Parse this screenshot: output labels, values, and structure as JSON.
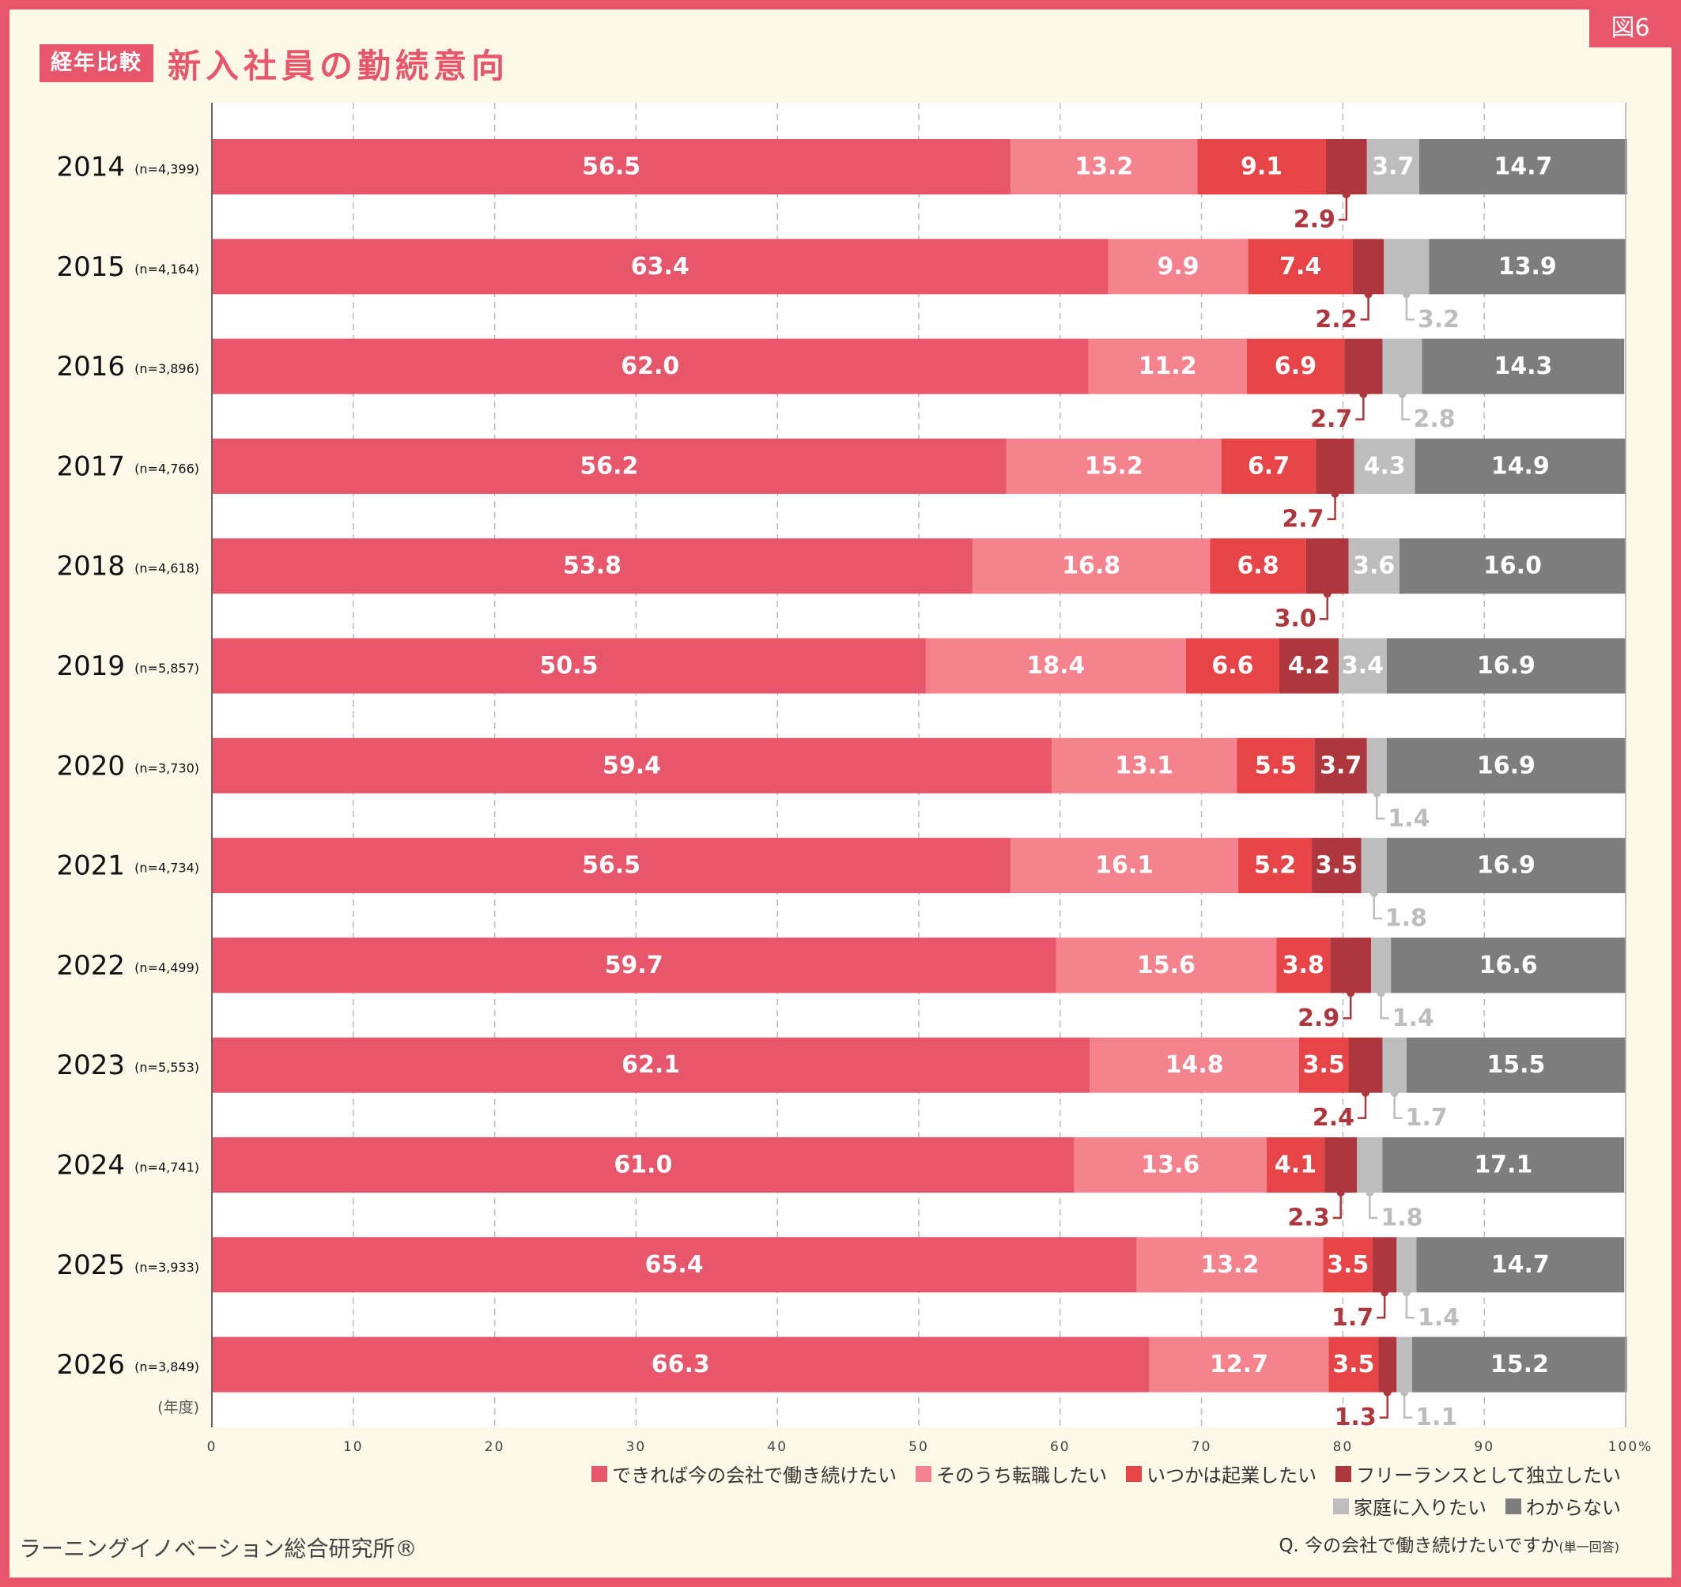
{
  "figure_number": "図6",
  "header": {
    "badge": "経年比較",
    "title": "新入社員の勤続意向"
  },
  "footer": {
    "source": "ラーニングイノベーション総合研究所®",
    "question": "Q. 今の会社で働き続けたいですか",
    "question_note": "(単一回答)"
  },
  "chart_data": {
    "type": "bar",
    "orientation": "horizontal",
    "stacked": true,
    "title": "新入社員の勤続意向",
    "categories": [
      "2014",
      "2015",
      "2016",
      "2017",
      "2018",
      "2019",
      "2020",
      "2021",
      "2022",
      "2023",
      "2024",
      "2025",
      "2026"
    ],
    "sample_sizes": [
      "(n=4,399)",
      "(n=4,164)",
      "(n=3,896)",
      "(n=4,766)",
      "(n=4,618)",
      "(n=5,857)",
      "(n=3,730)",
      "(n=4,734)",
      "(n=4,499)",
      "(n=5,553)",
      "(n=4,741)",
      "(n=3,933)",
      "(n=3,849)"
    ],
    "y_unit_label": "(年度)",
    "x_ticks": [
      "0",
      "10",
      "20",
      "30",
      "40",
      "50",
      "60",
      "70",
      "80",
      "90",
      "100%"
    ],
    "xlim": [
      0,
      100
    ],
    "grid": true,
    "legend_position": "bottom-right",
    "series": [
      {
        "name": "できれば今の会社で働き続けたい",
        "color": "#e8566b",
        "values": [
          56.5,
          63.4,
          62.0,
          56.2,
          53.8,
          50.5,
          59.4,
          56.5,
          59.7,
          62.1,
          61.0,
          65.4,
          66.3
        ]
      },
      {
        "name": "そのうち転職したい",
        "color": "#f4838d",
        "values": [
          13.2,
          9.9,
          11.2,
          15.2,
          16.8,
          18.4,
          13.1,
          16.1,
          15.6,
          14.8,
          13.6,
          13.2,
          12.7
        ]
      },
      {
        "name": "いつかは起業したい",
        "color": "#e64447",
        "values": [
          9.1,
          7.4,
          6.9,
          6.7,
          6.8,
          6.6,
          5.5,
          5.2,
          3.8,
          3.5,
          4.1,
          3.5,
          3.5
        ]
      },
      {
        "name": "フリーランスとして独立したい",
        "color": "#ae373d",
        "values": [
          2.9,
          2.2,
          2.7,
          2.7,
          3.0,
          4.2,
          3.7,
          3.5,
          2.9,
          2.4,
          2.3,
          1.7,
          1.3
        ]
      },
      {
        "name": "家庭に入りたい",
        "color": "#bdbdbd",
        "values": [
          3.7,
          3.2,
          2.8,
          4.3,
          3.6,
          3.4,
          1.4,
          1.8,
          1.4,
          1.7,
          1.8,
          1.4,
          1.1
        ]
      },
      {
        "name": "わからない",
        "color": "#7d7d7d",
        "values": [
          14.7,
          13.9,
          14.3,
          14.9,
          16.0,
          16.9,
          16.9,
          16.9,
          16.6,
          15.5,
          17.1,
          14.7,
          15.2
        ]
      }
    ]
  }
}
